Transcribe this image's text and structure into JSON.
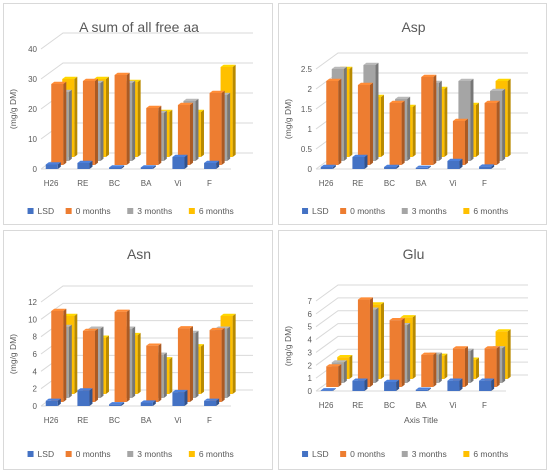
{
  "colors": {
    "LSD": "#4472C4",
    "0 months": "#ED7D31",
    "3 months": "#A5A5A5",
    "6 months": "#FFC000",
    "grid": "#d9d9d9",
    "text": "#595959"
  },
  "chart_data": [
    {
      "type": "bar",
      "title": "A sum of all free aa",
      "ylabel": "(mg/g DM)",
      "xlabel": "",
      "ylim": [
        0,
        40
      ],
      "yticks": [
        "0",
        "10",
        "20",
        "30",
        "40"
      ],
      "categories": [
        "H26",
        "RE",
        "BC",
        "BA",
        "Vi",
        "F"
      ],
      "series": [
        {
          "name": "LSD",
          "values": [
            1.5,
            2,
            0.5,
            0.5,
            4,
            2
          ]
        },
        {
          "name": "0 months",
          "values": [
            27,
            28,
            30,
            19,
            20,
            24
          ]
        },
        {
          "name": "3 months",
          "values": [
            23,
            26,
            26,
            16,
            20,
            22
          ]
        },
        {
          "name": "6 months",
          "values": [
            26,
            26,
            25,
            15,
            15,
            30
          ]
        }
      ],
      "legend_position": "bottom",
      "grid": true
    },
    {
      "type": "bar",
      "title": "Asp",
      "ylabel": "(mg/g DM)",
      "xlabel": "",
      "ylim": [
        0,
        2.5
      ],
      "yticks": [
        "0",
        "0.5",
        "1",
        "1.5",
        "2",
        "2.5"
      ],
      "categories": [
        "H26",
        "RE",
        "BC",
        "BA",
        "Vi",
        "F"
      ],
      "series": [
        {
          "name": "LSD",
          "values": [
            0.05,
            0.3,
            0.05,
            0.03,
            0.2,
            0.06
          ]
        },
        {
          "name": "0 months",
          "values": [
            2.1,
            2.0,
            1.55,
            2.2,
            1.1,
            1.55
          ]
        },
        {
          "name": "3 months",
          "values": [
            2.3,
            2.4,
            1.55,
            1.95,
            2.0,
            1.75
          ]
        },
        {
          "name": "6 months",
          "values": [
            2.2,
            1.5,
            1.25,
            1.7,
            1.3,
            1.9
          ]
        }
      ],
      "legend_position": "bottom",
      "grid": true
    },
    {
      "type": "bar",
      "title": "Asn",
      "ylabel": "(mg/g DM)",
      "xlabel": "",
      "ylim": [
        0,
        12
      ],
      "yticks": [
        "0",
        "2",
        "4",
        "6",
        "8",
        "10",
        "12"
      ],
      "categories": [
        "H26",
        "RE",
        "BC",
        "BA",
        "Vi",
        "F"
      ],
      "series": [
        {
          "name": "LSD",
          "values": [
            0.6,
            1.8,
            0.2,
            0.4,
            1.6,
            0.6
          ]
        },
        {
          "name": "0 months",
          "values": [
            10.5,
            8.2,
            10.4,
            6.5,
            8.5,
            8.3
          ]
        },
        {
          "name": "3 months",
          "values": [
            8.2,
            8.0,
            8.0,
            5.0,
            7.5,
            8.0
          ]
        },
        {
          "name": "6 months",
          "values": [
            9.0,
            6.5,
            6.8,
            4.0,
            5.5,
            9.0
          ]
        }
      ],
      "legend_position": "bottom",
      "grid": true
    },
    {
      "type": "bar",
      "title": "Glu",
      "ylabel": "(mg/g DM)",
      "xlabel": "Axis Title",
      "ylim": [
        0,
        7
      ],
      "yticks": [
        "0",
        "1",
        "2",
        "3",
        "4",
        "5",
        "6",
        "7"
      ],
      "categories": [
        "H26",
        "RE",
        "BC",
        "BA",
        "Vi",
        "F"
      ],
      "series": [
        {
          "name": "LSD",
          "values": [
            0.05,
            0.8,
            0.7,
            0.1,
            0.8,
            0.8
          ]
        },
        {
          "name": "0 months",
          "values": [
            1.6,
            6.8,
            5.2,
            2.5,
            3.0,
            3.0
          ]
        },
        {
          "name": "3 months",
          "values": [
            1.6,
            5.7,
            4.5,
            2.2,
            2.5,
            2.7
          ]
        },
        {
          "name": "6 months",
          "values": [
            1.7,
            5.8,
            4.8,
            1.8,
            1.5,
            3.7
          ]
        }
      ],
      "legend_position": "bottom",
      "grid": true
    }
  ]
}
